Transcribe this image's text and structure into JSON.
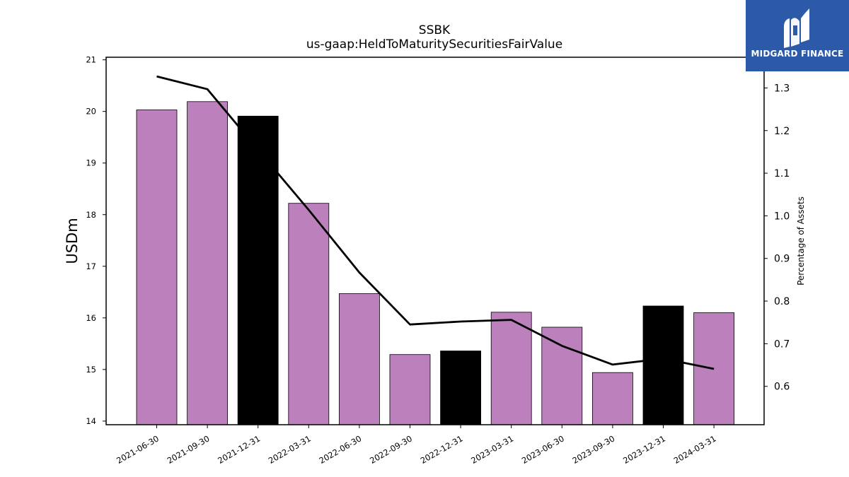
{
  "brand": {
    "name": "MIDGARD FINANCE",
    "logo_bg_color": "#2d5aa8",
    "logo_icon": "midgard-logo-mark"
  },
  "chart_data": {
    "type": "bar",
    "title": "SSBK",
    "subtitle": "us-gaap:HeldToMaturitySecuritiesFairValue",
    "ylabel": "USDm",
    "ylabel_right": "Percentage of Assets",
    "categories": [
      "2021-06-30",
      "2021-09-30",
      "2021-12-31",
      "2022-03-31",
      "2022-06-30",
      "2022-09-30",
      "2022-12-31",
      "2023-03-31",
      "2023-06-30",
      "2023-09-30",
      "2023-12-31",
      "2024-03-31"
    ],
    "series": [
      {
        "chart_type": "bar",
        "axis": "left",
        "values": [
          20.03,
          20.19,
          19.91,
          18.22,
          16.47,
          15.29,
          15.36,
          16.11,
          15.82,
          14.94,
          16.23,
          16.1
        ],
        "colors": [
          "#bc80bd",
          "#bc80bd",
          "#000000",
          "#bc80bd",
          "#bc80bd",
          "#bc80bd",
          "#000000",
          "#bc80bd",
          "#bc80bd",
          "#bc80bd",
          "#000000",
          "#bc80bd"
        ]
      },
      {
        "chart_type": "line",
        "axis": "right",
        "values": [
          1.327,
          1.297,
          1.155,
          1.014,
          0.867,
          0.745,
          0.752,
          0.756,
          0.695,
          0.651,
          0.665,
          0.641
        ],
        "color": "#000000"
      }
    ],
    "ylim": [
      13.93,
      21.05
    ],
    "yticks": [
      14,
      15,
      16,
      17,
      18,
      19,
      20,
      21
    ],
    "ylim_right": [
      0.51,
      1.372
    ],
    "yticks_right": [
      "0.6",
      "0.7",
      "0.8",
      "0.9",
      "1.0",
      "1.1",
      "1.2",
      "1.3"
    ],
    "grid": false,
    "legend": "none"
  }
}
